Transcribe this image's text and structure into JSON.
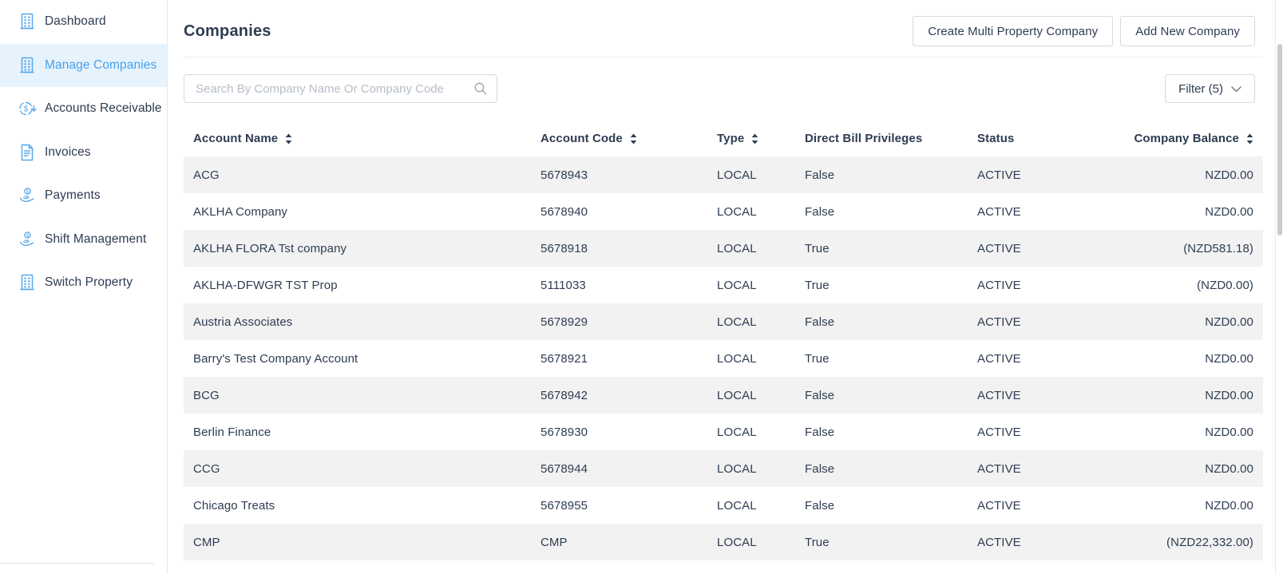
{
  "sidebar": {
    "items": [
      {
        "label": "Dashboard",
        "icon": "building-icon",
        "selected": false
      },
      {
        "label": "Manage Companies",
        "icon": "building-icon",
        "selected": true
      },
      {
        "label": "Accounts Receivable",
        "icon": "dollar-circle-icon",
        "selected": false
      },
      {
        "label": "Invoices",
        "icon": "invoice-icon",
        "selected": false
      },
      {
        "label": "Payments",
        "icon": "hand-coin-icon",
        "selected": false
      },
      {
        "label": "Shift Management",
        "icon": "hand-coin-icon",
        "selected": false
      },
      {
        "label": "Switch Property",
        "icon": "building-icon",
        "selected": false
      }
    ]
  },
  "header": {
    "title": "Companies",
    "create_multi_label": "Create Multi Property Company",
    "add_new_label": "Add New Company"
  },
  "toolbar": {
    "search_placeholder": "Search By Company Name Or Company Code",
    "filter_label": "Filter (5)"
  },
  "table": {
    "columns": [
      {
        "label": "Account Name",
        "sortable": true,
        "align": "left"
      },
      {
        "label": "Account Code",
        "sortable": true,
        "align": "left"
      },
      {
        "label": "Type",
        "sortable": true,
        "align": "left"
      },
      {
        "label": "Direct Bill Privileges",
        "sortable": false,
        "align": "left"
      },
      {
        "label": "Status",
        "sortable": false,
        "align": "left"
      },
      {
        "label": "Company Balance",
        "sortable": true,
        "align": "right"
      }
    ],
    "rows": [
      {
        "account_name": "ACG",
        "account_code": "5678943",
        "type": "LOCAL",
        "direct_bill": "False",
        "status": "ACTIVE",
        "balance": "NZD0.00"
      },
      {
        "account_name": "AKLHA Company",
        "account_code": "5678940",
        "type": "LOCAL",
        "direct_bill": "False",
        "status": "ACTIVE",
        "balance": "NZD0.00"
      },
      {
        "account_name": "AKLHA FLORA Tst company",
        "account_code": "5678918",
        "type": "LOCAL",
        "direct_bill": "True",
        "status": "ACTIVE",
        "balance": "(NZD581.18)"
      },
      {
        "account_name": "AKLHA-DFWGR TST Prop",
        "account_code": "5111033",
        "type": "LOCAL",
        "direct_bill": "True",
        "status": "ACTIVE",
        "balance": "(NZD0.00)"
      },
      {
        "account_name": "Austria Associates",
        "account_code": "5678929",
        "type": "LOCAL",
        "direct_bill": "False",
        "status": "ACTIVE",
        "balance": "NZD0.00"
      },
      {
        "account_name": "Barry's Test Company Account",
        "account_code": "5678921",
        "type": "LOCAL",
        "direct_bill": "True",
        "status": "ACTIVE",
        "balance": "NZD0.00"
      },
      {
        "account_name": "BCG",
        "account_code": "5678942",
        "type": "LOCAL",
        "direct_bill": "False",
        "status": "ACTIVE",
        "balance": "NZD0.00"
      },
      {
        "account_name": "Berlin Finance",
        "account_code": "5678930",
        "type": "LOCAL",
        "direct_bill": "False",
        "status": "ACTIVE",
        "balance": "NZD0.00"
      },
      {
        "account_name": "CCG",
        "account_code": "5678944",
        "type": "LOCAL",
        "direct_bill": "False",
        "status": "ACTIVE",
        "balance": "NZD0.00"
      },
      {
        "account_name": "Chicago Treats",
        "account_code": "5678955",
        "type": "LOCAL",
        "direct_bill": "False",
        "status": "ACTIVE",
        "balance": "NZD0.00"
      },
      {
        "account_name": "CMP",
        "account_code": "CMP",
        "type": "LOCAL",
        "direct_bill": "True",
        "status": "ACTIVE",
        "balance": "(NZD22,332.00)"
      }
    ]
  },
  "colors": {
    "accent_blue": "#4ba1e9",
    "icon_blue": "#57a8ea",
    "selected_item_bg": "#e6f2fc",
    "text_dark": "#2e3c52",
    "row_stripe": "#f2f2f2",
    "border": "#d9d9d9"
  }
}
